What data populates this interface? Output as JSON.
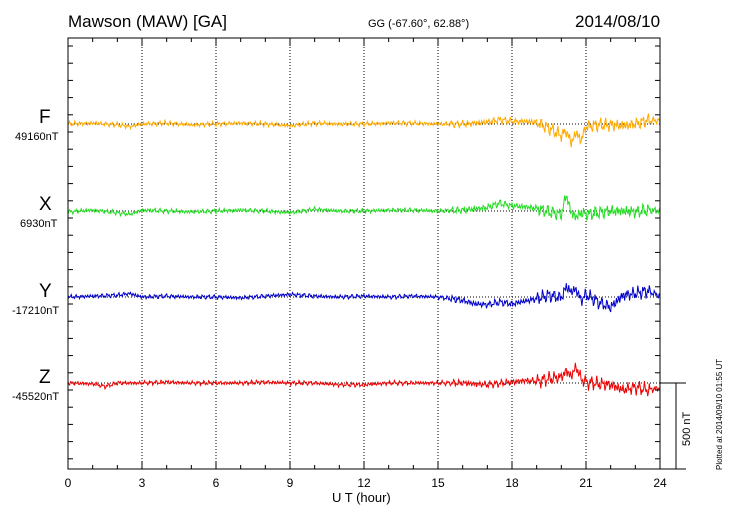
{
  "header": {
    "station": "Mawson (MAW)  [GA]",
    "coords": "GG (-67.60°,  62.88°)",
    "date": "2014/08/10"
  },
  "scale_label": "500 nT",
  "plotted_note": "Plotted at 2014/09/10 01:55 UT",
  "colors": {
    "F": "#ffaa00",
    "X": "#22dd22",
    "Y": "#0000cc",
    "Z": "#ee0000"
  },
  "chart_data": {
    "type": "line",
    "xlabel": "U T (hour)",
    "xlim": [
      0,
      24
    ],
    "x_ticks": [
      "0",
      "3",
      "6",
      "9",
      "12",
      "15",
      "18",
      "21",
      "24"
    ],
    "grid": "vertical dotted every 3 hours",
    "series": [
      {
        "name": "F",
        "baseline_label": "49160nT",
        "color": "#ffaa00",
        "x": [
          0,
          1,
          2,
          2.5,
          3,
          4,
          5,
          6,
          7,
          8,
          9,
          10,
          11,
          12,
          13,
          14,
          15,
          16,
          17,
          17.5,
          18,
          18.5,
          19,
          19.5,
          19.8,
          20,
          20.2,
          20.4,
          20.6,
          20.8,
          21,
          21.5,
          22,
          22.5,
          23,
          23.5,
          24
        ],
        "values": [
          0,
          5,
          -5,
          -15,
          0,
          5,
          -5,
          0,
          5,
          0,
          -10,
          5,
          0,
          0,
          5,
          5,
          0,
          0,
          10,
          25,
          15,
          15,
          10,
          -25,
          -50,
          -65,
          -40,
          -110,
          -50,
          -95,
          -15,
          -5,
          -5,
          -10,
          0,
          20,
          20
        ]
      },
      {
        "name": "X",
        "baseline_label": "6930nT",
        "color": "#22dd22",
        "x": [
          0,
          1,
          2,
          2.5,
          3,
          4,
          5,
          6,
          7,
          8,
          9,
          10,
          11,
          12,
          13,
          14,
          15,
          16,
          17,
          17.5,
          18,
          18.5,
          19,
          19.5,
          20,
          20.2,
          20.4,
          20.6,
          20.8,
          21,
          21.5,
          22,
          22.5,
          23,
          23.5,
          24
        ],
        "values": [
          -5,
          5,
          -10,
          -20,
          5,
          0,
          -5,
          0,
          5,
          0,
          -10,
          10,
          0,
          0,
          5,
          5,
          0,
          5,
          20,
          45,
          30,
          25,
          15,
          -5,
          -20,
          95,
          -10,
          -35,
          -10,
          -20,
          -10,
          0,
          0,
          -5,
          5,
          0
        ]
      },
      {
        "name": "Y",
        "baseline_label": "-17210nT",
        "color": "#0000cc",
        "x": [
          0,
          1,
          2,
          2.5,
          3,
          4,
          5,
          6,
          7,
          8,
          9,
          10,
          11,
          12,
          13,
          14,
          15,
          16,
          16.5,
          17,
          17.5,
          18,
          18.5,
          19,
          19.5,
          20,
          20.2,
          20.4,
          20.6,
          20.8,
          21,
          21.5,
          22,
          22.5,
          23,
          23.5,
          24
        ],
        "values": [
          0,
          5,
          10,
          20,
          0,
          5,
          0,
          0,
          -5,
          5,
          15,
          5,
          0,
          5,
          0,
          5,
          0,
          -20,
          -40,
          -45,
          -30,
          -40,
          -25,
          -10,
          10,
          -5,
          60,
          30,
          45,
          -20,
          15,
          -30,
          -60,
          10,
          20,
          35,
          5
        ]
      },
      {
        "name": "Z",
        "baseline_label": "-45520nT",
        "color": "#ee0000",
        "x": [
          0,
          1,
          1.5,
          2,
          3,
          4,
          5,
          6,
          7,
          8,
          9,
          10,
          11,
          12,
          13,
          14,
          15,
          16,
          17,
          18,
          18.5,
          19,
          19.5,
          20,
          20.2,
          20.4,
          20.6,
          20.8,
          21,
          21.5,
          22,
          22.5,
          23,
          23.5,
          24
        ],
        "values": [
          0,
          -5,
          -20,
          0,
          0,
          5,
          0,
          0,
          0,
          5,
          0,
          0,
          -10,
          -10,
          0,
          0,
          0,
          0,
          -10,
          5,
          15,
          10,
          25,
          35,
          70,
          40,
          95,
          25,
          5,
          -5,
          -10,
          -40,
          -25,
          -40,
          -30
        ]
      }
    ]
  }
}
